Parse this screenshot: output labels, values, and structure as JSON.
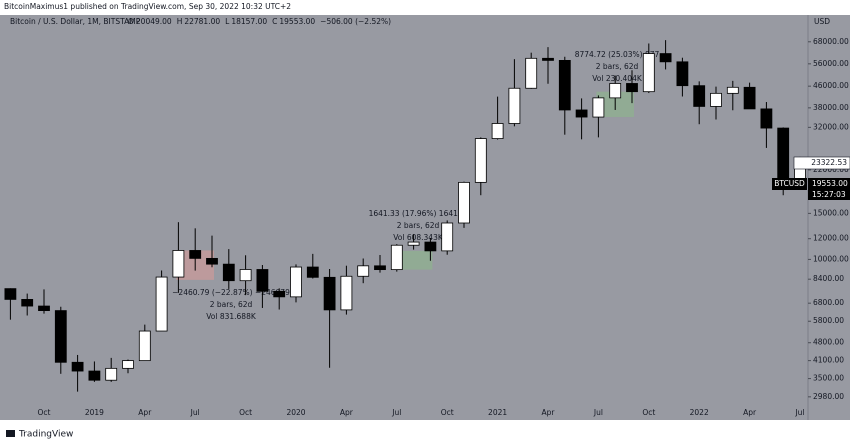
{
  "chart_data": {
    "type": "candlestick",
    "publisher": "BitcoinMaximus1 published on TradingView.com, Sep 30, 2022 10:32 UTC+2",
    "brand": "TradingView",
    "currency": "USD",
    "legend": {
      "symbol": "Bitcoin / U.S. Dollar, 1M, BITSTAMP",
      "o_label": "O",
      "o": "20049.00",
      "h_label": "H",
      "h": "22781.00",
      "l_label": "L",
      "l": "18157.00",
      "c_label": "C",
      "c": "19553.00",
      "change": "−506.00 (−2.52%)"
    },
    "log_scale": true,
    "up_color": "#ffffff",
    "down_color": "#000000",
    "categories": [
      null,
      null,
      "Oct",
      null,
      null,
      "2019",
      null,
      null,
      "Apr",
      null,
      null,
      "Jul",
      null,
      null,
      "Oct",
      null,
      null,
      "2020",
      null,
      null,
      "Apr",
      null,
      null,
      "Jul",
      null,
      null,
      "Oct",
      null,
      null,
      "2021",
      null,
      null,
      "Apr",
      null,
      null,
      "Jul",
      null,
      null,
      "Oct",
      null,
      null,
      "2022",
      null,
      null,
      "Apr",
      null,
      null,
      "Jul"
    ],
    "open": [
      7730,
      7030,
      6630,
      6370,
      4040,
      3740,
      3450,
      3830,
      4100,
      5320,
      8560,
      10820,
      10090,
      9590,
      8290,
      9150,
      7550,
      7190,
      9350,
      8540,
      6410,
      8620,
      9450,
      9140,
      11330,
      11650,
      10780,
      13780,
      19710,
      28990,
      33110,
      45160,
      58790,
      57720,
      37300,
      35040,
      41490,
      47100,
      43820,
      61300,
      57000,
      46200,
      38480,
      43180,
      45540,
      37650,
      31800,
      19940
    ],
    "high": [
      7750,
      7400,
      7680,
      6590,
      4310,
      4070,
      4200,
      4140,
      5630,
      9070,
      13880,
      13150,
      12330,
      10950,
      10370,
      9520,
      7750,
      9570,
      10500,
      9190,
      9460,
      10080,
      10400,
      11440,
      12470,
      12080,
      14100,
      19850,
      29300,
      41950,
      58350,
      61780,
      64900,
      59600,
      41300,
      42400,
      50500,
      52900,
      67000,
      69000,
      59100,
      47990,
      45800,
      48200,
      47450,
      40000,
      31990,
      24670
    ],
    "low": [
      5880,
      6100,
      6200,
      3650,
      3120,
      3400,
      3400,
      3670,
      4090,
      5320,
      7450,
      9060,
      9330,
      7710,
      7300,
      6520,
      6430,
      6850,
      8450,
      3850,
      6150,
      8110,
      8900,
      8980,
      10900,
      9880,
      10420,
      13200,
      17600,
      28730,
      32290,
      44960,
      47000,
      30000,
      28800,
      29300,
      37300,
      39600,
      43300,
      53300,
      42000,
      32900,
      34300,
      37200,
      37700,
      26700,
      17600,
      18800
    ],
    "close": [
      7030,
      6630,
      6370,
      4040,
      3740,
      3450,
      3830,
      4100,
      5320,
      8560,
      10820,
      10090,
      9590,
      8290,
      9150,
      7550,
      7190,
      9350,
      8540,
      6410,
      8620,
      9450,
      9140,
      11330,
      11650,
      10780,
      13780,
      19710,
      28990,
      33110,
      45160,
      58790,
      57720,
      37300,
      35040,
      41490,
      47100,
      43820,
      61300,
      57000,
      46200,
      38480,
      43180,
      45540,
      37650,
      31800,
      19940,
      23320
    ],
    "ylim": [
      2430,
      86100
    ],
    "yticks": [
      {
        "value": 68000,
        "label": "68000.00"
      },
      {
        "value": 56000,
        "label": "56000.00"
      },
      {
        "value": 46000,
        "label": "46000.00"
      },
      {
        "value": 38000,
        "label": "38000.00"
      },
      {
        "value": 32000,
        "label": "32000.00"
      },
      {
        "value": 22000,
        "label": "22000.00"
      },
      {
        "value": 15000,
        "label": "15000.00"
      },
      {
        "value": 12000,
        "label": "12000.00"
      },
      {
        "value": 10000,
        "label": "10000.00"
      },
      {
        "value": 8400,
        "label": "8400.00"
      },
      {
        "value": 6800,
        "label": "6800.00"
      },
      {
        "value": 5800,
        "label": "5800.00"
      },
      {
        "value": 4800,
        "label": "4800.00"
      },
      {
        "value": 4100,
        "label": "4100.00"
      },
      {
        "value": 3500,
        "label": "3500.00"
      },
      {
        "value": 2980,
        "label": "2980.00"
      }
    ],
    "price_labels": {
      "last_close": "23322.53",
      "symbol": "BTCUSD",
      "price": "19553.00",
      "countdown": "15:27:03"
    },
    "measurements": [
      {
        "color": "#c99a9a",
        "lines": [
          "−2460.79 (−22.87%) −246079",
          "2 bars, 62d",
          "Vol 831.688K"
        ]
      },
      {
        "color": "#8fb08f",
        "lines": [
          "1641.33 (17.96%) 164133",
          "2 bars, 62d",
          "Vol 608.343K"
        ]
      },
      {
        "color": "#8fb08f",
        "lines": [
          "8774.72 (25.03%) 877",
          "2 bars, 62d",
          "Vol 230.404K"
        ]
      }
    ]
  }
}
